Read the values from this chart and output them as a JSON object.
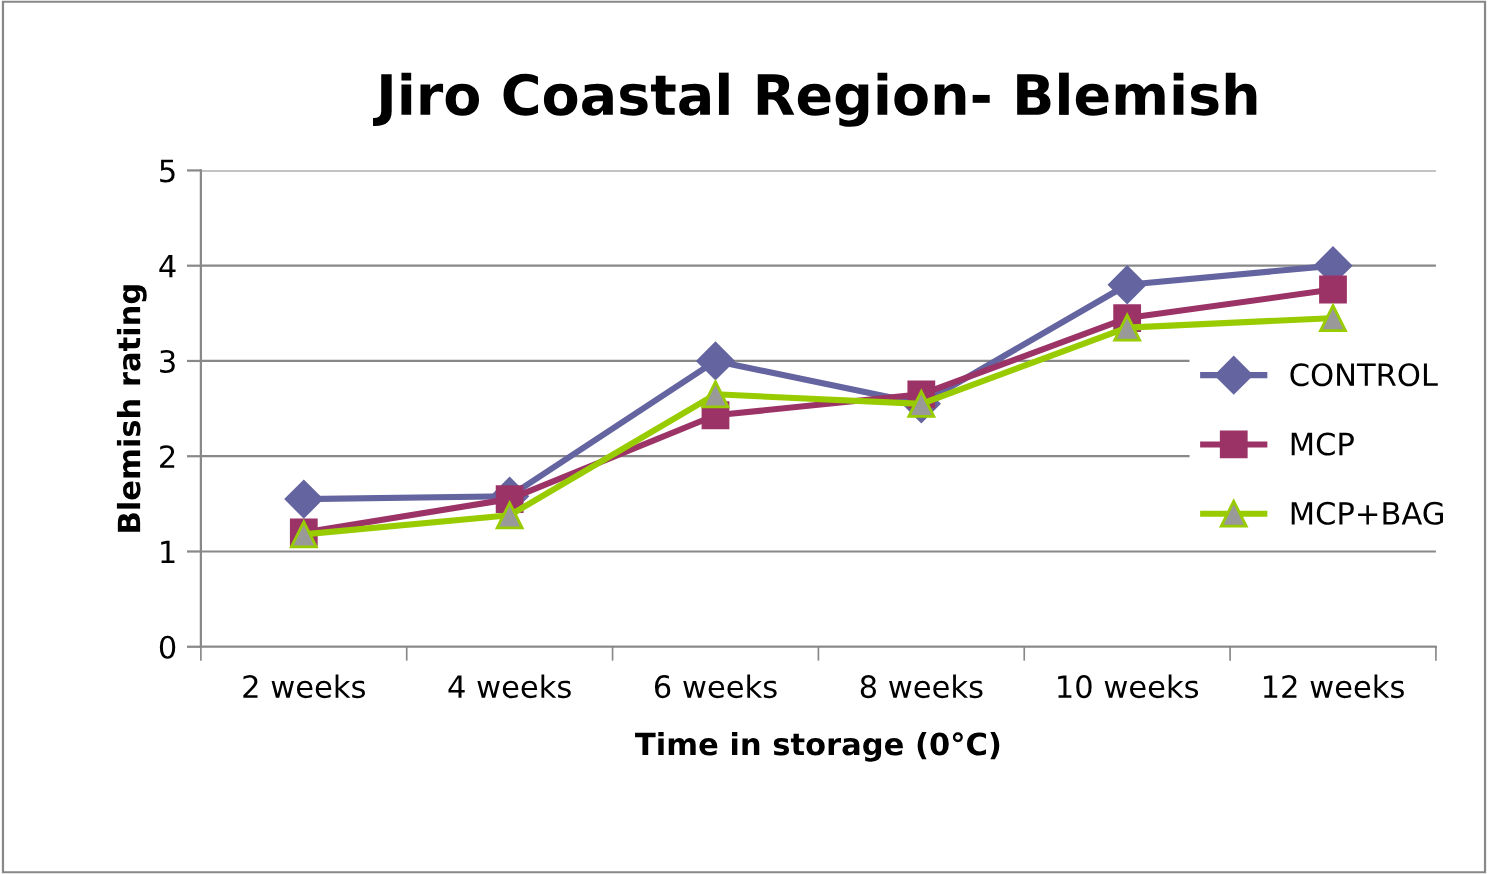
{
  "chart_data": {
    "type": "line",
    "title": "Jiro Coastal Region- Blemish",
    "xlabel": "Time in storage (0°C)",
    "ylabel": "Blemish rating",
    "categories": [
      "2 weeks",
      "4 weeks",
      "6 weeks",
      "8 weeks",
      "10 weeks",
      "12 weeks"
    ],
    "series": [
      {
        "name": "CONTROL",
        "color": "#6464a0",
        "marker": "diamond",
        "values": [
          1.55,
          1.58,
          3.0,
          2.55,
          3.8,
          4.0
        ]
      },
      {
        "name": "MCP",
        "color": "#9b3366",
        "marker": "square",
        "values": [
          1.2,
          1.55,
          2.43,
          2.65,
          3.45,
          3.75
        ]
      },
      {
        "name": "MCP+BAG",
        "color": "#99cc00",
        "marker": "triangle",
        "values": [
          1.18,
          1.38,
          2.65,
          2.55,
          3.35,
          3.45
        ]
      }
    ],
    "ylim": [
      0,
      5
    ],
    "yticks": [
      0,
      1,
      2,
      3,
      4,
      5
    ],
    "grid": "y",
    "legend": "right"
  }
}
